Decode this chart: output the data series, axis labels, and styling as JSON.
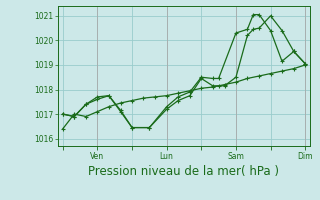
{
  "bg_color": "#cce8e8",
  "grid_color": "#99cccc",
  "line_color": "#1a6b1a",
  "marker_color": "#1a6b1a",
  "xlabel": "Pression niveau de la mer( hPa )",
  "xlabel_color": "#1a6b1a",
  "xlabel_fontsize": 8.5,
  "ylabel_ticks": [
    1016,
    1017,
    1018,
    1019,
    1020,
    1021
  ],
  "ylim": [
    1015.7,
    1021.4
  ],
  "xlim": [
    -0.15,
    7.15
  ],
  "xtick_labels": [
    "",
    "Ven",
    "",
    "Lun",
    "",
    "Sam",
    "",
    "Dim"
  ],
  "xtick_positions": [
    0,
    1,
    2,
    3,
    4,
    5,
    6,
    7
  ],
  "vline_positions": [
    1,
    3,
    5,
    7
  ],
  "series1_x": [
    0,
    0.33,
    0.67,
    1.0,
    1.33,
    1.67,
    2.0,
    2.33,
    2.67,
    3.0,
    3.33,
    3.67,
    4.0,
    4.33,
    4.67,
    5.0,
    5.33,
    5.67,
    6.0,
    6.33,
    6.67,
    7.0
  ],
  "series1_y": [
    1016.4,
    1017.0,
    1016.9,
    1017.1,
    1017.3,
    1017.45,
    1017.55,
    1017.65,
    1017.7,
    1017.75,
    1017.85,
    1017.95,
    1018.05,
    1018.1,
    1018.2,
    1018.3,
    1018.45,
    1018.55,
    1018.65,
    1018.75,
    1018.85,
    1019.0
  ],
  "series2_x": [
    0,
    0.33,
    0.67,
    1.0,
    1.33,
    1.67,
    2.0,
    2.5,
    3.0,
    3.33,
    3.67,
    4.0,
    4.33,
    4.5,
    4.67,
    5.0,
    5.33,
    5.5,
    5.67,
    6.0,
    6.33,
    6.67,
    7.0
  ],
  "series2_y": [
    1017.0,
    1016.9,
    1017.4,
    1017.6,
    1017.75,
    1017.1,
    1016.45,
    1016.45,
    1017.2,
    1017.55,
    1017.75,
    1018.45,
    1018.15,
    1018.15,
    1018.15,
    1018.5,
    1020.2,
    1020.45,
    1020.5,
    1021.0,
    1020.4,
    1019.55,
    1019.05
  ],
  "series3_x": [
    0,
    0.33,
    0.67,
    1.0,
    1.33,
    1.67,
    2.0,
    2.5,
    3.0,
    3.33,
    3.67,
    4.0,
    4.33,
    4.5,
    5.0,
    5.33,
    5.5,
    5.67,
    6.0,
    6.33,
    6.67,
    7.0
  ],
  "series3_y": [
    1017.0,
    1016.9,
    1017.4,
    1017.7,
    1017.75,
    1017.15,
    1016.45,
    1016.45,
    1017.3,
    1017.7,
    1017.9,
    1018.5,
    1018.45,
    1018.45,
    1020.3,
    1020.45,
    1021.05,
    1021.05,
    1020.4,
    1019.15,
    1019.55,
    1019.05
  ]
}
